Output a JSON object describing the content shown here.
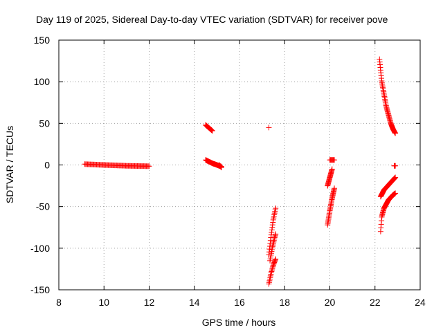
{
  "chart_data": {
    "type": "scatter",
    "title": "Day 119 of 2025, Sidereal Day-to-day VTEC variation (SDTVAR) for receiver pove",
    "xlabel": "GPS time / hours",
    "ylabel": "SDTVAR / TECUs",
    "xlim": [
      8,
      24
    ],
    "ylim": [
      -150,
      150
    ],
    "x_ticks": [
      8,
      10,
      12,
      14,
      16,
      18,
      20,
      22,
      24
    ],
    "y_ticks": [
      -150,
      -100,
      -50,
      0,
      50,
      100,
      150
    ],
    "x_tick_labels": [
      "8",
      "10",
      "12",
      "14",
      "16",
      "18",
      "20",
      "22",
      "24"
    ],
    "y_tick_labels": [
      "-150",
      "-100",
      "-50",
      "0",
      "50",
      "100",
      "150"
    ],
    "grid": true,
    "marker": "+",
    "color": "#ff0000",
    "segments": [
      {
        "x": [
          9.15,
          10.0,
          11.0,
          12.0
        ],
        "y": [
          1,
          0,
          -1,
          -1.5
        ],
        "step": 0.04
      },
      {
        "x": [
          14.5,
          14.8
        ],
        "y": [
          48,
          41
        ],
        "step": 0.02
      },
      {
        "x": [
          14.5,
          14.8,
          15.0,
          15.2
        ],
        "y": [
          6,
          2,
          0,
          -2
        ],
        "step": 0.02
      },
      {
        "x": [
          15.1,
          15.2
        ],
        "y": [
          0,
          -3
        ],
        "step": 0.02
      },
      {
        "x": [
          17.3
        ],
        "y": [
          45
        ],
        "step": 0.05
      },
      {
        "x": [
          17.3,
          17.4,
          17.5,
          17.6
        ],
        "y": [
          -108,
          -85,
          -65,
          -52
        ],
        "step": 0.015
      },
      {
        "x": [
          17.35,
          17.45,
          17.55,
          17.6
        ],
        "y": [
          -115,
          -100,
          -88,
          -83
        ],
        "step": 0.015
      },
      {
        "x": [
          17.3,
          17.4,
          17.5,
          17.6
        ],
        "y": [
          -143,
          -130,
          -120,
          -113
        ],
        "step": 0.015
      },
      {
        "x": [
          19.9,
          20.0,
          20.1,
          20.2
        ],
        "y": [
          -72,
          -55,
          -40,
          -28
        ],
        "step": 0.01
      },
      {
        "x": [
          19.9,
          20.0,
          20.1
        ],
        "y": [
          -25,
          -15,
          -5
        ],
        "step": 0.01
      },
      {
        "x": [
          20.0,
          20.1,
          20.2
        ],
        "y": [
          6,
          6,
          6
        ],
        "step": 0.03
      },
      {
        "x": [
          22.2,
          22.3,
          22.4,
          22.5,
          22.6,
          22.7,
          22.8,
          22.9
        ],
        "y": [
          127,
          100,
          85,
          70,
          60,
          50,
          43,
          38
        ],
        "step": 0.012
      },
      {
        "x": [
          22.25,
          22.4,
          22.6,
          22.8,
          22.9
        ],
        "y": [
          -38,
          -30,
          -24,
          -18,
          -15
        ],
        "step": 0.012
      },
      {
        "x": [
          22.25,
          22.3,
          22.4,
          22.6,
          22.8,
          22.9
        ],
        "y": [
          -80,
          -62,
          -52,
          -42,
          -36,
          -34
        ],
        "step": 0.012
      },
      {
        "x": [
          22.85,
          22.9
        ],
        "y": [
          -1,
          -1
        ],
        "step": 0.03
      }
    ]
  }
}
